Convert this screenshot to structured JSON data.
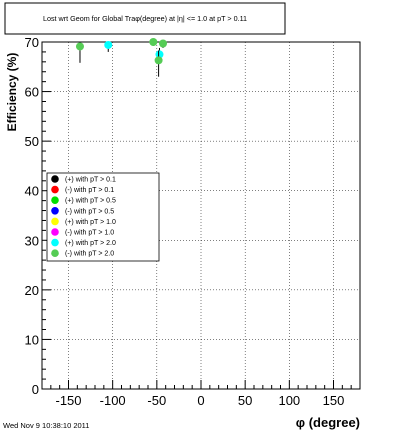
{
  "timestamp": "Wed Nov  9 10:38:10 2011",
  "chart_data": {
    "type": "scatter",
    "title": "Lost wrt Geom for Global Traφ(degree) at |η| <= 1.0 at pT > 0.11",
    "xlabel": "φ (degree)",
    "ylabel": "Efficiency (%)",
    "xlim": [
      -180,
      180
    ],
    "ylim": [
      0,
      70
    ],
    "x_ticks": [
      -150,
      -100,
      -50,
      0,
      50,
      100,
      150
    ],
    "y_ticks": [
      0,
      10,
      20,
      30,
      40,
      50,
      60,
      70
    ],
    "grid": true,
    "legend_position": "center-left",
    "series": [
      {
        "name": "(+) with pT > 0.1",
        "color": "#000000",
        "points": []
      },
      {
        "name": "(-) with pT > 0.1",
        "color": "#ff0000",
        "points": []
      },
      {
        "name": "(+) with pT > 0.5",
        "color": "#00dd00",
        "points": []
      },
      {
        "name": "(-) with pT > 0.5",
        "color": "#0000ff",
        "points": []
      },
      {
        "name": "(+) with pT > 1.0",
        "color": "#ffff00",
        "points": []
      },
      {
        "name": "(-) with pT > 1.0",
        "color": "#ff00ff",
        "points": []
      },
      {
        "name": "(+) with pT > 2.0",
        "color": "#00ffff",
        "points": [
          {
            "x": -105,
            "y": 69.4,
            "err_low": 1.4,
            "err_high": 0.6
          },
          {
            "x": -47,
            "y": 67.5,
            "err_low": 1.3,
            "err_high": 1.3
          }
        ]
      },
      {
        "name": "(-) with pT > 2.0",
        "color": "#55cc55",
        "points": [
          {
            "x": -137,
            "y": 69.1,
            "err_low": 3.3,
            "err_high": 0.9
          },
          {
            "x": -54,
            "y": 70.0,
            "err_low": 0.8,
            "err_high": 0.0
          },
          {
            "x": -48,
            "y": 66.3,
            "err_low": 3.3,
            "err_high": 2.0
          },
          {
            "x": -43,
            "y": 69.7,
            "err_low": 0.9,
            "err_high": 0.3
          }
        ]
      }
    ]
  }
}
